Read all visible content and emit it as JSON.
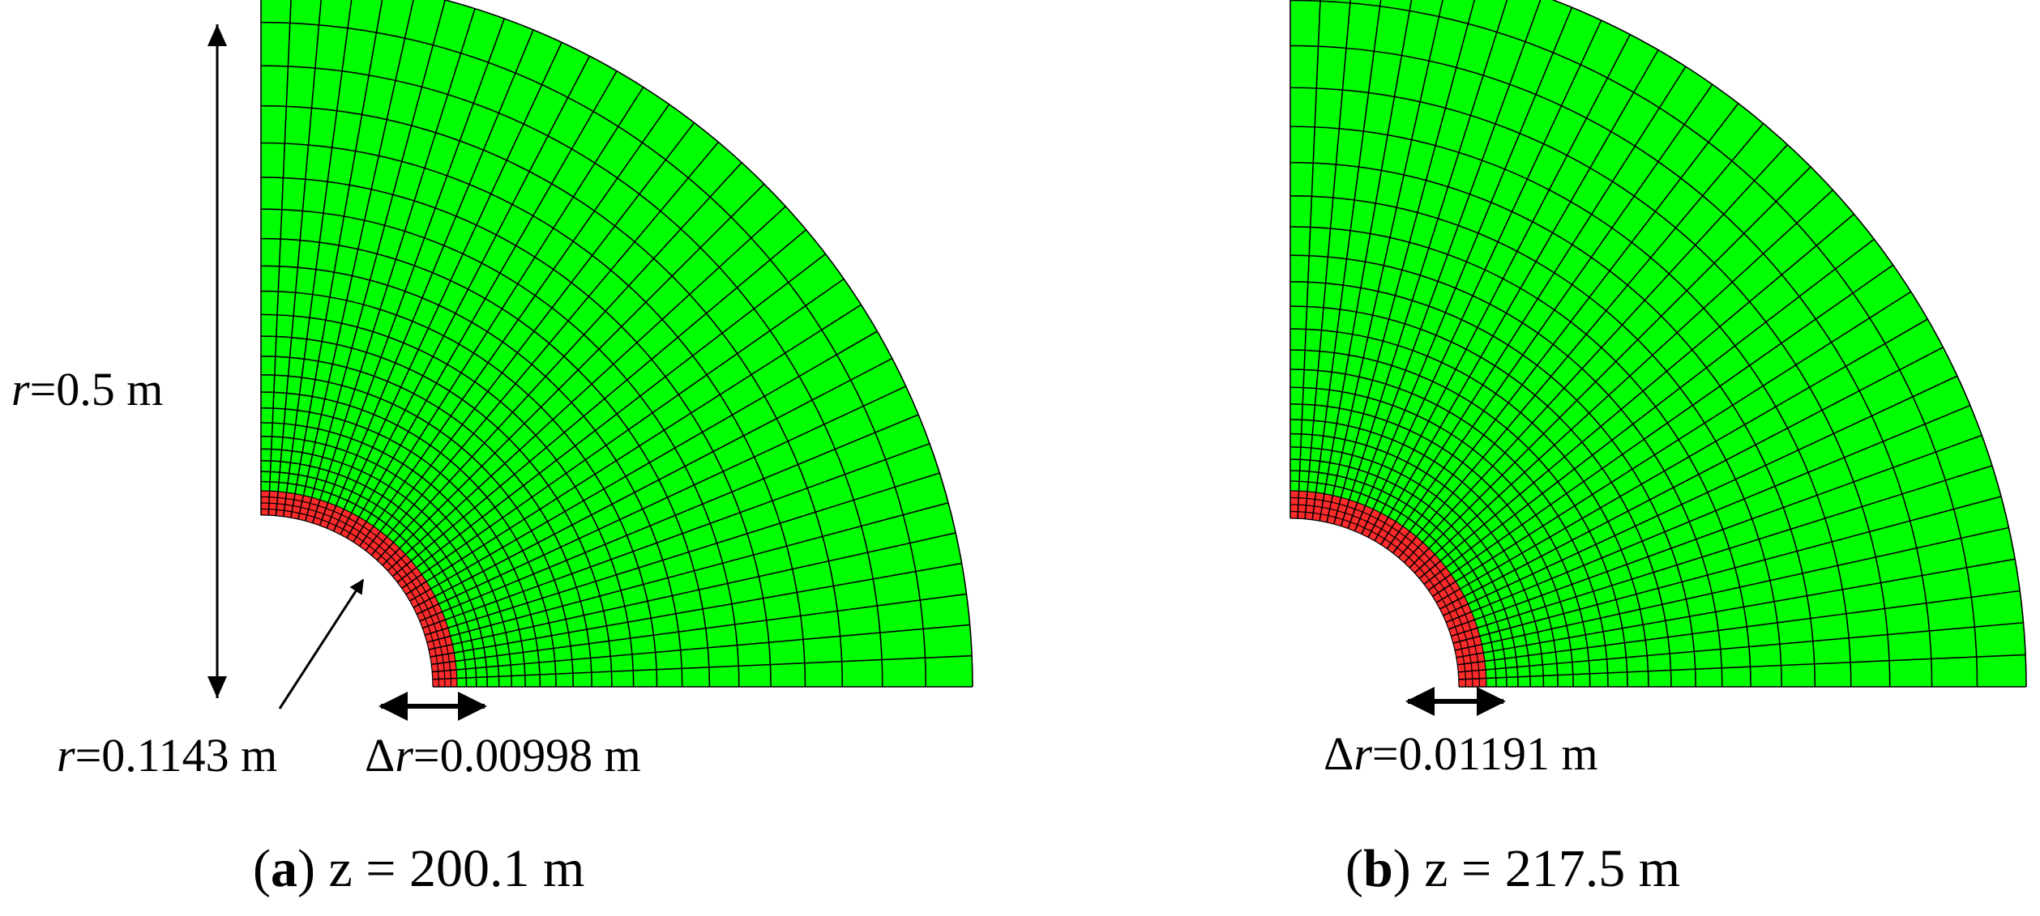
{
  "figure": {
    "panels": [
      {
        "id": "a",
        "caption_letter": "a",
        "caption_text": " z = 200.1 m",
        "outer_radius_label": {
          "symbol": "r",
          "value": "=0.5 m"
        },
        "inner_radius_label": {
          "symbol": "r",
          "value": "=0.1143 m"
        },
        "delta_r_label": {
          "prefix": "Δ",
          "symbol": "r",
          "value": "=0.00998 m"
        },
        "outer_radius_m": 0.5,
        "inner_radius_m": 0.1143,
        "delta_r_m": 0.00998
      },
      {
        "id": "b",
        "caption_letter": "b",
        "caption_text": " z = 217.5 m",
        "delta_r_label": {
          "prefix": "Δ",
          "symbol": "r",
          "value": "=0.01191 m"
        },
        "outer_radius_m": 0.5,
        "delta_r_m": 0.01191
      }
    ],
    "mesh": {
      "angular_divisions": 36,
      "fine_rings": 4,
      "coarse_rings": 22,
      "coarse_growth": 1.08
    },
    "colors": {
      "coarse_fill": "#00ff00",
      "fine_fill": "#ff2a2a",
      "grid_line": "#000000",
      "arrow": "#000000",
      "background": "#ffffff"
    }
  }
}
